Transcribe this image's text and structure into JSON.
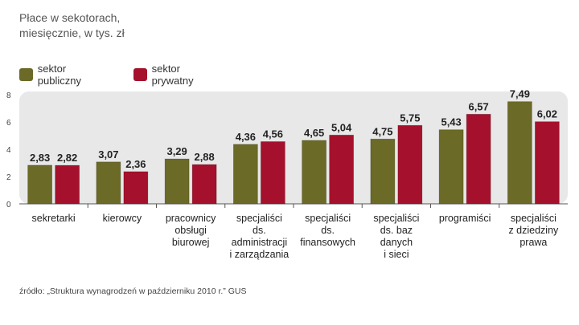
{
  "title": "Płace w sekotorach,\nmiesięcznie, w tys. zł",
  "source": "źródło: „Struktura wynagrodzeń w październiku 2010 r.” GUS",
  "colors": {
    "public": "#6b6a27",
    "private": "#a5112c",
    "background_band": "#e8e8e8",
    "axis": "#555555"
  },
  "chart_data": {
    "type": "bar",
    "title": "Płace w sekotorach, miesięcznie, w tys. zł",
    "xlabel": "",
    "ylabel": "",
    "ylim": [
      0,
      8
    ],
    "yticks": [
      "0",
      "2",
      "4",
      "6",
      "8"
    ],
    "grid": false,
    "legend_position": "top-left",
    "categories": [
      "sekretarki",
      "kierowcy",
      "pracownicy\nobsługi\nbiurowej",
      "specjaliści\nds.\nadministracji\ni zarządzania",
      "specjaliści\nds.\nfinansowych",
      "specjaliści\nds. baz\ndanych\ni sieci",
      "programiści",
      "specjaliści\nz dziedziny\nprawa"
    ],
    "series": [
      {
        "name": "sektor publiczny",
        "values": [
          2.83,
          3.07,
          3.29,
          4.36,
          4.65,
          4.75,
          5.43,
          7.49
        ],
        "labels": [
          "2,83",
          "3,07",
          "3,29",
          "4,36",
          "4,65",
          "4,75",
          "5,43",
          "7,49"
        ]
      },
      {
        "name": "sektor prywatny",
        "values": [
          2.82,
          2.36,
          2.88,
          4.56,
          5.04,
          5.75,
          6.57,
          6.02
        ],
        "labels": [
          "2,82",
          "2,36",
          "2,88",
          "4,56",
          "5,04",
          "5,75",
          "6,57",
          "6,02"
        ]
      }
    ]
  }
}
